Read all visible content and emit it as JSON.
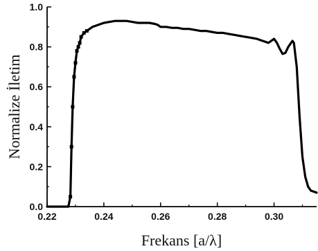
{
  "chart_data": {
    "type": "line",
    "xlabel": "Frekans [a/λ]",
    "ylabel": "Normalize İletim",
    "xlim": [
      0.22,
      0.315
    ],
    "ylim": [
      0.0,
      1.0
    ],
    "x_ticks": [
      "0.22",
      "0.24",
      "0.26",
      "0.28",
      "0.30"
    ],
    "y_ticks": [
      "0.0",
      "0.2",
      "0.4",
      "0.6",
      "0.8",
      "1.0"
    ],
    "grid": false,
    "line_color": "#000000",
    "series": [
      {
        "x": [
          0.22,
          0.2275,
          0.2282,
          0.2286,
          0.229,
          0.2295,
          0.23,
          0.2305,
          0.231,
          0.2315,
          0.232,
          0.233,
          0.234,
          0.235,
          0.236,
          0.238,
          0.24,
          0.242,
          0.244,
          0.246,
          0.248,
          0.25,
          0.252,
          0.254,
          0.256,
          0.258,
          0.259,
          0.26,
          0.262,
          0.264,
          0.266,
          0.268,
          0.27,
          0.272,
          0.274,
          0.276,
          0.278,
          0.28,
          0.282,
          0.284,
          0.286,
          0.288,
          0.29,
          0.292,
          0.294,
          0.296,
          0.298,
          0.3,
          0.301,
          0.302,
          0.303,
          0.304,
          0.305,
          0.306,
          0.3065,
          0.307,
          0.308,
          0.309,
          0.31,
          0.311,
          0.312,
          0.313,
          0.314,
          0.315
        ],
        "y": [
          0.0,
          0.0,
          0.05,
          0.3,
          0.5,
          0.65,
          0.72,
          0.78,
          0.8,
          0.82,
          0.85,
          0.87,
          0.88,
          0.89,
          0.9,
          0.91,
          0.92,
          0.925,
          0.93,
          0.93,
          0.93,
          0.925,
          0.92,
          0.92,
          0.92,
          0.915,
          0.91,
          0.9,
          0.9,
          0.895,
          0.895,
          0.89,
          0.89,
          0.885,
          0.88,
          0.88,
          0.875,
          0.87,
          0.87,
          0.865,
          0.86,
          0.855,
          0.85,
          0.845,
          0.84,
          0.83,
          0.82,
          0.84,
          0.82,
          0.79,
          0.765,
          0.77,
          0.8,
          0.82,
          0.83,
          0.82,
          0.7,
          0.45,
          0.25,
          0.15,
          0.1,
          0.08,
          0.075,
          0.07
        ]
      }
    ]
  }
}
